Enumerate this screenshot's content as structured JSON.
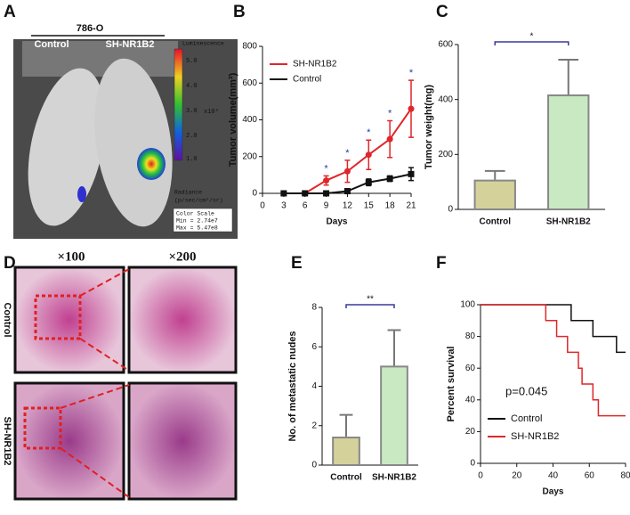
{
  "panel_labels": [
    "A",
    "B",
    "C",
    "D",
    "E",
    "F"
  ],
  "image_a": {
    "cell_line": "786-O",
    "groups": [
      "Control",
      "SH-NR1B2"
    ],
    "colorbar_title": "Luminescence",
    "colorbar_ticks": [
      "5.0",
      "4.0",
      "3.0",
      "2.0",
      "1.0"
    ],
    "colorbar_unit": "x10⁸",
    "radiance": "Radiance",
    "radiance_unit": "(p/sec/cm²/sr)",
    "color_scale": [
      "Color Scale",
      "Min = 2.74e7",
      "Max = 5.47e8"
    ]
  },
  "image_d": {
    "magnifications": [
      "×100",
      "×200"
    ],
    "rows": [
      "Control",
      "SH-NR1B2"
    ]
  },
  "chart_data": [
    {
      "type": "line",
      "x_label": "Days",
      "y_label": "Tumor volume(mm³)",
      "x": [
        3,
        6,
        9,
        12,
        15,
        18,
        21
      ],
      "xlim": [
        0,
        21
      ],
      "xticks": [
        0,
        3,
        6,
        9,
        12,
        15,
        18,
        21
      ],
      "ylim": [
        0,
        800
      ],
      "yticks": [
        0,
        200,
        400,
        600,
        800
      ],
      "legend": "upper left",
      "series": [
        {
          "name": "SH-NR1B2",
          "color": "#e0262b",
          "marker": "circle",
          "values": [
            0,
            0,
            70,
            120,
            210,
            295,
            460
          ],
          "errors": [
            0,
            0,
            25,
            60,
            80,
            100,
            155
          ]
        },
        {
          "name": "Control",
          "color": "#111111",
          "marker": "square",
          "values": [
            0,
            0,
            0,
            12,
            60,
            80,
            105
          ],
          "errors": [
            0,
            0,
            0,
            10,
            18,
            15,
            35
          ]
        }
      ],
      "significance": {
        "x": [
          9,
          12,
          15,
          18,
          21
        ],
        "labels": [
          "*",
          "*",
          "*",
          "*",
          "*"
        ]
      }
    },
    {
      "type": "bar",
      "y_label": "Tumor weight(mg)",
      "categories": [
        "Control",
        "SH-NR1B2"
      ],
      "values": [
        105,
        415
      ],
      "errors": [
        35,
        130
      ],
      "colors": [
        "#d5d19b",
        "#c9e9c3"
      ],
      "ylim": [
        0,
        600
      ],
      "yticks": [
        0,
        200,
        400,
        600
      ],
      "significance": "*"
    },
    {
      "type": "bar",
      "y_label": "No. of metastatic nudes",
      "categories": [
        "Control",
        "SH-NR1B2"
      ],
      "values": [
        1.4,
        5.0
      ],
      "errors": [
        1.15,
        1.85
      ],
      "colors": [
        "#d5d19b",
        "#c9e9c3"
      ],
      "ylim": [
        0,
        8
      ],
      "yticks": [
        0,
        2,
        4,
        6,
        8
      ],
      "significance": "**"
    },
    {
      "type": "step",
      "x_label": "Days",
      "y_label": "Percent survival",
      "xlim": [
        0,
        80
      ],
      "xticks": [
        0,
        20,
        40,
        60,
        80
      ],
      "ylim": [
        0,
        100
      ],
      "yticks": [
        0,
        20,
        40,
        60,
        80,
        100
      ],
      "legend": "lower left",
      "annotation": "p=0.045",
      "series": [
        {
          "name": "Control",
          "color": "#111111",
          "x": [
            0,
            50,
            62,
            75,
            80
          ],
          "values": [
            100,
            90,
            80,
            70,
            70
          ]
        },
        {
          "name": "SH-NR1B2",
          "color": "#e0262b",
          "x": [
            0,
            36,
            42,
            48,
            54,
            56,
            62,
            65,
            80
          ],
          "values": [
            100,
            90,
            80,
            70,
            60,
            50,
            40,
            30,
            30
          ]
        }
      ]
    }
  ]
}
